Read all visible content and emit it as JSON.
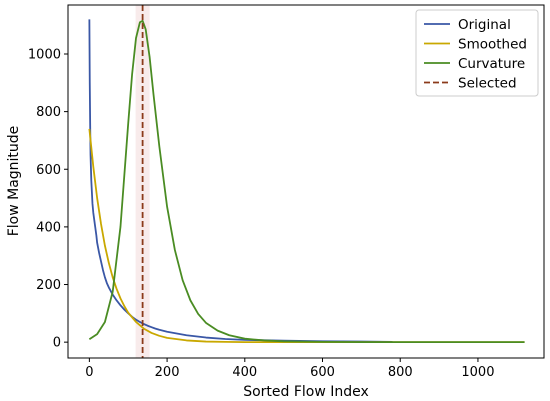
{
  "chart_data": {
    "type": "line",
    "xlabel": "Sorted Flow Index",
    "ylabel": "Flow Magnitude",
    "xlim": [
      -55,
      1170
    ],
    "ylim": [
      -55,
      1170
    ],
    "x_ticks": [
      0,
      200,
      400,
      600,
      800,
      1000
    ],
    "y_ticks": [
      0,
      200,
      400,
      600,
      800,
      1000
    ],
    "grid": false,
    "legend_position": "top-right",
    "series": [
      {
        "name": "Original",
        "color": "#3a57a6",
        "style": "solid",
        "x": [
          0,
          1,
          2,
          3,
          5,
          8,
          10,
          12,
          15,
          18,
          20,
          25,
          30,
          35,
          40,
          45,
          50,
          60,
          70,
          80,
          90,
          100,
          110,
          120,
          130,
          140,
          150,
          160,
          170,
          180,
          200,
          250,
          300,
          350,
          400,
          500,
          600,
          700,
          780
        ],
        "y": [
          1120,
          900,
          760,
          650,
          560,
          480,
          450,
          430,
          400,
          370,
          345,
          310,
          280,
          250,
          225,
          205,
          190,
          165,
          145,
          128,
          113,
          100,
          88,
          78,
          70,
          63,
          57,
          52,
          47,
          43,
          36,
          24,
          16,
          11,
          8,
          5,
          3,
          2,
          1
        ]
      },
      {
        "name": "Smoothed",
        "color": "#c9a800",
        "style": "solid",
        "x": [
          0,
          10,
          20,
          30,
          40,
          50,
          60,
          70,
          80,
          90,
          100,
          120,
          140,
          160,
          180,
          200,
          250,
          300,
          350,
          400,
          500,
          600,
          700,
          800,
          900,
          1000,
          1120
        ],
        "y": [
          740,
          610,
          500,
          410,
          335,
          275,
          225,
          185,
          152,
          125,
          102,
          70,
          47,
          32,
          22,
          15,
          6,
          2,
          1,
          0,
          0,
          0,
          0,
          0,
          0,
          0,
          0
        ]
      },
      {
        "name": "Curvature",
        "color": "#4a8c23",
        "style": "solid",
        "x": [
          0,
          20,
          40,
          60,
          80,
          100,
          110,
          120,
          130,
          137,
          145,
          155,
          165,
          180,
          200,
          220,
          240,
          260,
          280,
          300,
          330,
          360,
          400,
          450,
          500,
          600,
          700,
          800,
          900,
          1000,
          1120
        ],
        "y": [
          10,
          28,
          70,
          175,
          400,
          760,
          930,
          1055,
          1110,
          1115,
          1085,
          990,
          860,
          680,
          470,
          320,
          215,
          145,
          98,
          67,
          40,
          24,
          12,
          6,
          3,
          1,
          0,
          0,
          0,
          0,
          0
        ]
      }
    ],
    "selected": {
      "name": "Selected",
      "x": 137,
      "color": "#8b3a1a",
      "style": "dashed"
    }
  },
  "colors": {
    "selected_band": "#f3dede"
  }
}
